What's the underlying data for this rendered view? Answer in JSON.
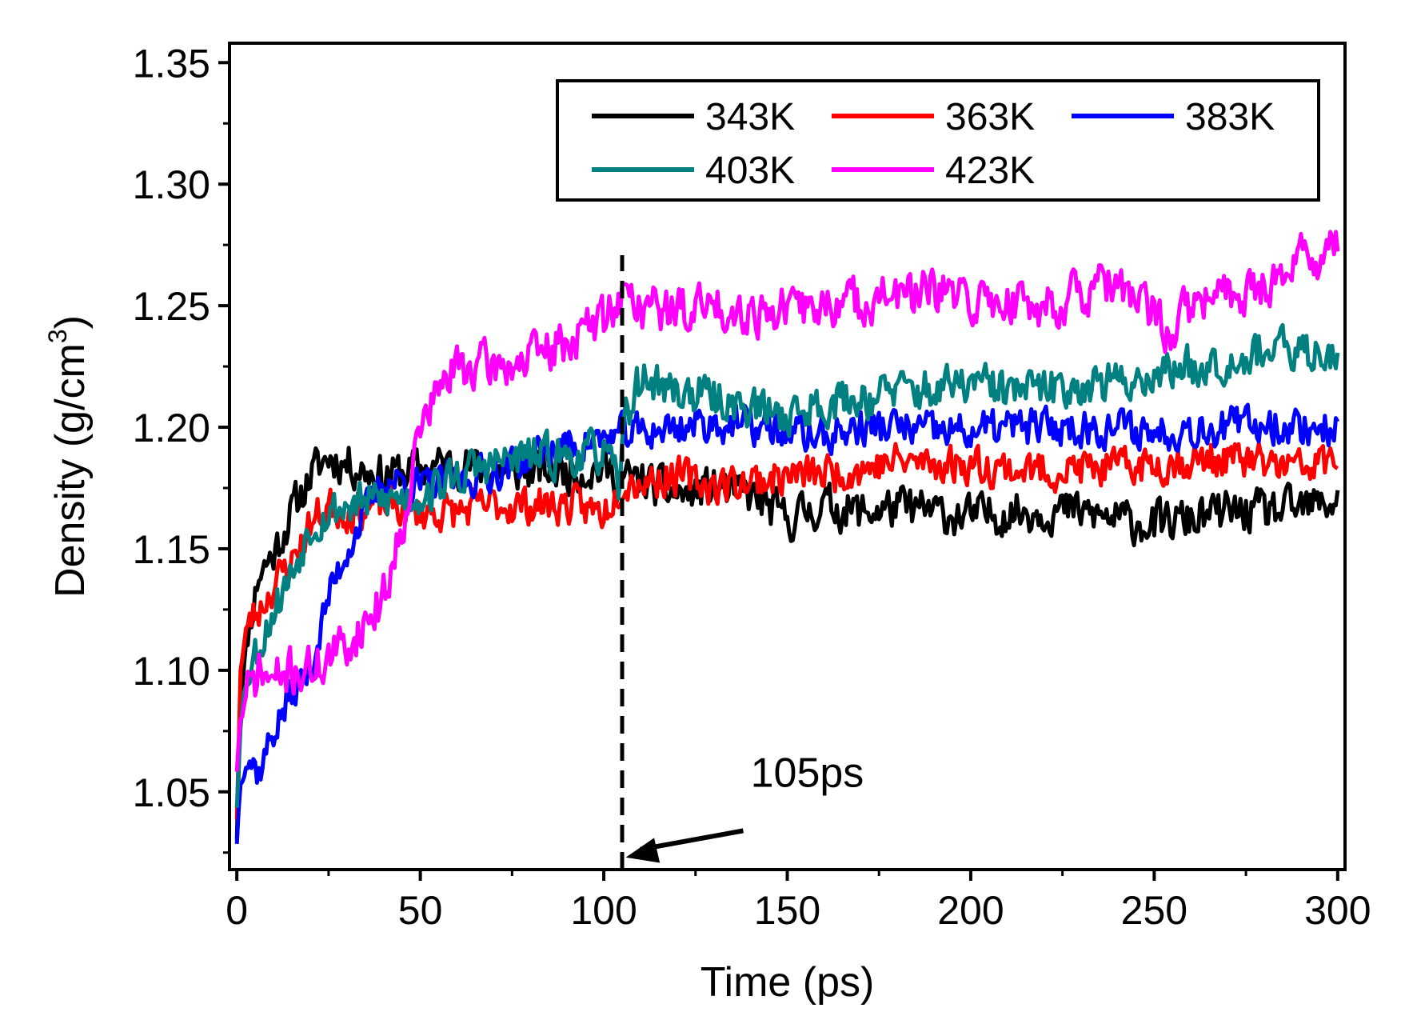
{
  "chart_data": {
    "type": "line",
    "title": "",
    "xlabel": "Time (ps)",
    "ylabel_main": "Density (g/cm",
    "ylabel_sup": "3",
    "ylabel_close": ")",
    "xlim": [
      -2,
      302
    ],
    "ylim": [
      1.018,
      1.358
    ],
    "xticks": [
      0,
      50,
      100,
      150,
      200,
      250,
      300
    ],
    "xtick_labels": [
      "0",
      "50",
      "100",
      "150",
      "200",
      "250",
      "300"
    ],
    "yticks": [
      1.05,
      1.1,
      1.15,
      1.2,
      1.25,
      1.3,
      1.35
    ],
    "ytick_labels": [
      "1.05",
      "1.10",
      "1.15",
      "1.20",
      "1.25",
      "1.30",
      "1.35"
    ],
    "grid": false,
    "legend_position": "top-right",
    "series": [
      {
        "name": "343K",
        "color": "#000000",
        "noise": 0.01,
        "seed": 11,
        "points": [
          [
            0,
            1.032
          ],
          [
            1,
            1.09
          ],
          [
            3,
            1.115
          ],
          [
            6,
            1.14
          ],
          [
            10,
            1.148
          ],
          [
            15,
            1.165
          ],
          [
            20,
            1.18
          ],
          [
            25,
            1.188
          ],
          [
            30,
            1.185
          ],
          [
            40,
            1.18
          ],
          [
            50,
            1.183
          ],
          [
            60,
            1.185
          ],
          [
            70,
            1.182
          ],
          [
            80,
            1.182
          ],
          [
            90,
            1.182
          ],
          [
            100,
            1.183
          ],
          [
            105,
            1.178
          ],
          [
            110,
            1.178
          ],
          [
            120,
            1.172
          ],
          [
            130,
            1.175
          ],
          [
            140,
            1.172
          ],
          [
            150,
            1.162
          ],
          [
            160,
            1.168
          ],
          [
            170,
            1.165
          ],
          [
            180,
            1.167
          ],
          [
            190,
            1.165
          ],
          [
            200,
            1.163
          ],
          [
            210,
            1.165
          ],
          [
            220,
            1.166
          ],
          [
            230,
            1.165
          ],
          [
            240,
            1.162
          ],
          [
            250,
            1.16
          ],
          [
            260,
            1.162
          ],
          [
            270,
            1.165
          ],
          [
            280,
            1.165
          ],
          [
            290,
            1.166
          ],
          [
            300,
            1.17
          ]
        ]
      },
      {
        "name": "363K",
        "color": "#ff0000",
        "noise": 0.009,
        "seed": 23,
        "points": [
          [
            0,
            1.04
          ],
          [
            1,
            1.1
          ],
          [
            3,
            1.12
          ],
          [
            6,
            1.125
          ],
          [
            10,
            1.135
          ],
          [
            15,
            1.145
          ],
          [
            20,
            1.16
          ],
          [
            25,
            1.168
          ],
          [
            30,
            1.165
          ],
          [
            40,
            1.168
          ],
          [
            50,
            1.165
          ],
          [
            60,
            1.165
          ],
          [
            70,
            1.168
          ],
          [
            80,
            1.168
          ],
          [
            90,
            1.168
          ],
          [
            100,
            1.165
          ],
          [
            105,
            1.178
          ],
          [
            110,
            1.178
          ],
          [
            120,
            1.18
          ],
          [
            130,
            1.176
          ],
          [
            140,
            1.178
          ],
          [
            150,
            1.18
          ],
          [
            160,
            1.181
          ],
          [
            170,
            1.183
          ],
          [
            180,
            1.186
          ],
          [
            190,
            1.185
          ],
          [
            200,
            1.185
          ],
          [
            210,
            1.183
          ],
          [
            220,
            1.182
          ],
          [
            230,
            1.183
          ],
          [
            240,
            1.183
          ],
          [
            250,
            1.185
          ],
          [
            260,
            1.186
          ],
          [
            270,
            1.187
          ],
          [
            280,
            1.185
          ],
          [
            290,
            1.183
          ],
          [
            300,
            1.187
          ]
        ]
      },
      {
        "name": "383K",
        "color": "#0000ff",
        "noise": 0.009,
        "seed": 37,
        "points": [
          [
            0,
            1.03
          ],
          [
            1,
            1.055
          ],
          [
            3,
            1.065
          ],
          [
            6,
            1.058
          ],
          [
            10,
            1.075
          ],
          [
            15,
            1.09
          ],
          [
            20,
            1.1
          ],
          [
            25,
            1.13
          ],
          [
            30,
            1.15
          ],
          [
            35,
            1.165
          ],
          [
            40,
            1.178
          ],
          [
            45,
            1.178
          ],
          [
            50,
            1.175
          ],
          [
            60,
            1.178
          ],
          [
            70,
            1.182
          ],
          [
            80,
            1.188
          ],
          [
            90,
            1.192
          ],
          [
            100,
            1.195
          ],
          [
            105,
            1.197
          ],
          [
            110,
            1.198
          ],
          [
            120,
            1.2
          ],
          [
            130,
            1.202
          ],
          [
            140,
            1.2
          ],
          [
            150,
            1.198
          ],
          [
            160,
            1.196
          ],
          [
            170,
            1.2
          ],
          [
            180,
            1.2
          ],
          [
            190,
            1.198
          ],
          [
            200,
            1.198
          ],
          [
            210,
            1.2
          ],
          [
            220,
            1.2
          ],
          [
            230,
            1.2
          ],
          [
            240,
            1.2
          ],
          [
            250,
            1.198
          ],
          [
            260,
            1.2
          ],
          [
            270,
            1.2
          ],
          [
            280,
            1.202
          ],
          [
            290,
            1.2
          ],
          [
            300,
            1.2
          ]
        ]
      },
      {
        "name": "403K",
        "color": "#008080",
        "noise": 0.01,
        "seed": 53,
        "points": [
          [
            0,
            1.045
          ],
          [
            1,
            1.08
          ],
          [
            3,
            1.1
          ],
          [
            6,
            1.11
          ],
          [
            10,
            1.125
          ],
          [
            15,
            1.14
          ],
          [
            20,
            1.16
          ],
          [
            25,
            1.165
          ],
          [
            30,
            1.168
          ],
          [
            40,
            1.17
          ],
          [
            50,
            1.172
          ],
          [
            60,
            1.18
          ],
          [
            70,
            1.185
          ],
          [
            80,
            1.188
          ],
          [
            90,
            1.188
          ],
          [
            100,
            1.19
          ],
          [
            104,
            1.175
          ],
          [
            106,
            1.205
          ],
          [
            110,
            1.22
          ],
          [
            120,
            1.215
          ],
          [
            130,
            1.212
          ],
          [
            140,
            1.208
          ],
          [
            150,
            1.205
          ],
          [
            160,
            1.21
          ],
          [
            170,
            1.212
          ],
          [
            180,
            1.215
          ],
          [
            190,
            1.215
          ],
          [
            200,
            1.218
          ],
          [
            210,
            1.215
          ],
          [
            220,
            1.215
          ],
          [
            230,
            1.218
          ],
          [
            240,
            1.218
          ],
          [
            250,
            1.222
          ],
          [
            260,
            1.225
          ],
          [
            270,
            1.228
          ],
          [
            280,
            1.232
          ],
          [
            290,
            1.23
          ],
          [
            300,
            1.232
          ]
        ]
      },
      {
        "name": "423K",
        "color": "#ff00ff",
        "noise": 0.011,
        "seed": 71,
        "points": [
          [
            0,
            1.06
          ],
          [
            1,
            1.08
          ],
          [
            3,
            1.09
          ],
          [
            6,
            1.1
          ],
          [
            10,
            1.095
          ],
          [
            15,
            1.1
          ],
          [
            20,
            1.1
          ],
          [
            25,
            1.105
          ],
          [
            30,
            1.11
          ],
          [
            35,
            1.12
          ],
          [
            40,
            1.13
          ],
          [
            45,
            1.16
          ],
          [
            50,
            1.2
          ],
          [
            55,
            1.215
          ],
          [
            60,
            1.225
          ],
          [
            70,
            1.225
          ],
          [
            80,
            1.228
          ],
          [
            90,
            1.235
          ],
          [
            100,
            1.245
          ],
          [
            105,
            1.255
          ],
          [
            110,
            1.25
          ],
          [
            120,
            1.248
          ],
          [
            130,
            1.25
          ],
          [
            140,
            1.248
          ],
          [
            150,
            1.248
          ],
          [
            160,
            1.25
          ],
          [
            170,
            1.252
          ],
          [
            180,
            1.254
          ],
          [
            190,
            1.255
          ],
          [
            200,
            1.252
          ],
          [
            210,
            1.252
          ],
          [
            220,
            1.25
          ],
          [
            230,
            1.255
          ],
          [
            240,
            1.258
          ],
          [
            250,
            1.245
          ],
          [
            255,
            1.24
          ],
          [
            260,
            1.25
          ],
          [
            270,
            1.255
          ],
          [
            280,
            1.258
          ],
          [
            290,
            1.27
          ],
          [
            300,
            1.272
          ]
        ]
      }
    ],
    "annotations": [
      {
        "type": "vline",
        "x": 105,
        "style": "dashed"
      },
      {
        "type": "arrow",
        "label": "105ps",
        "label_x": 140,
        "label_y": 1.052,
        "from_x": 138,
        "from_y": 1.034,
        "to_x": 106,
        "to_y": 1.023
      }
    ]
  }
}
